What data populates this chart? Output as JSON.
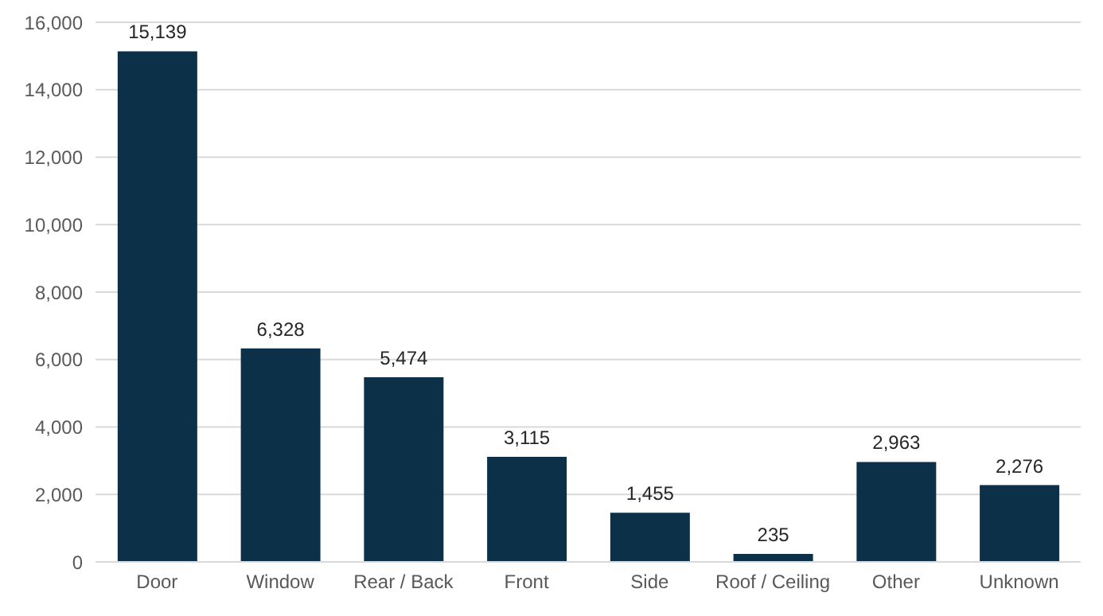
{
  "chart_data": {
    "type": "bar",
    "categories": [
      "Door",
      "Window",
      "Rear / Back",
      "Front",
      "Side",
      "Roof / Ceiling",
      "Other",
      "Unknown"
    ],
    "values": [
      15139,
      6328,
      5474,
      3115,
      1455,
      235,
      2963,
      2276
    ],
    "value_labels": [
      "15,139",
      "6,328",
      "5,474",
      "3,115",
      "1,455",
      "235",
      "2,963",
      "2,276"
    ],
    "color": "#0d3049",
    "ylim": [
      0,
      16000
    ],
    "yticks": [
      0,
      {
        "value": 2000,
        "label": "2,000"
      },
      {
        "value": 4000,
        "label": "4,000"
      },
      {
        "value": 6000,
        "label": "6,000"
      },
      {
        "value": 8000,
        "label": "8,000"
      },
      {
        "value": 10000,
        "label": "10,000"
      },
      {
        "value": 12000,
        "label": "12,000"
      },
      {
        "value": 14000,
        "label": "14,000"
      },
      {
        "value": 16000,
        "label": "16,000"
      }
    ],
    "grid": "y"
  }
}
